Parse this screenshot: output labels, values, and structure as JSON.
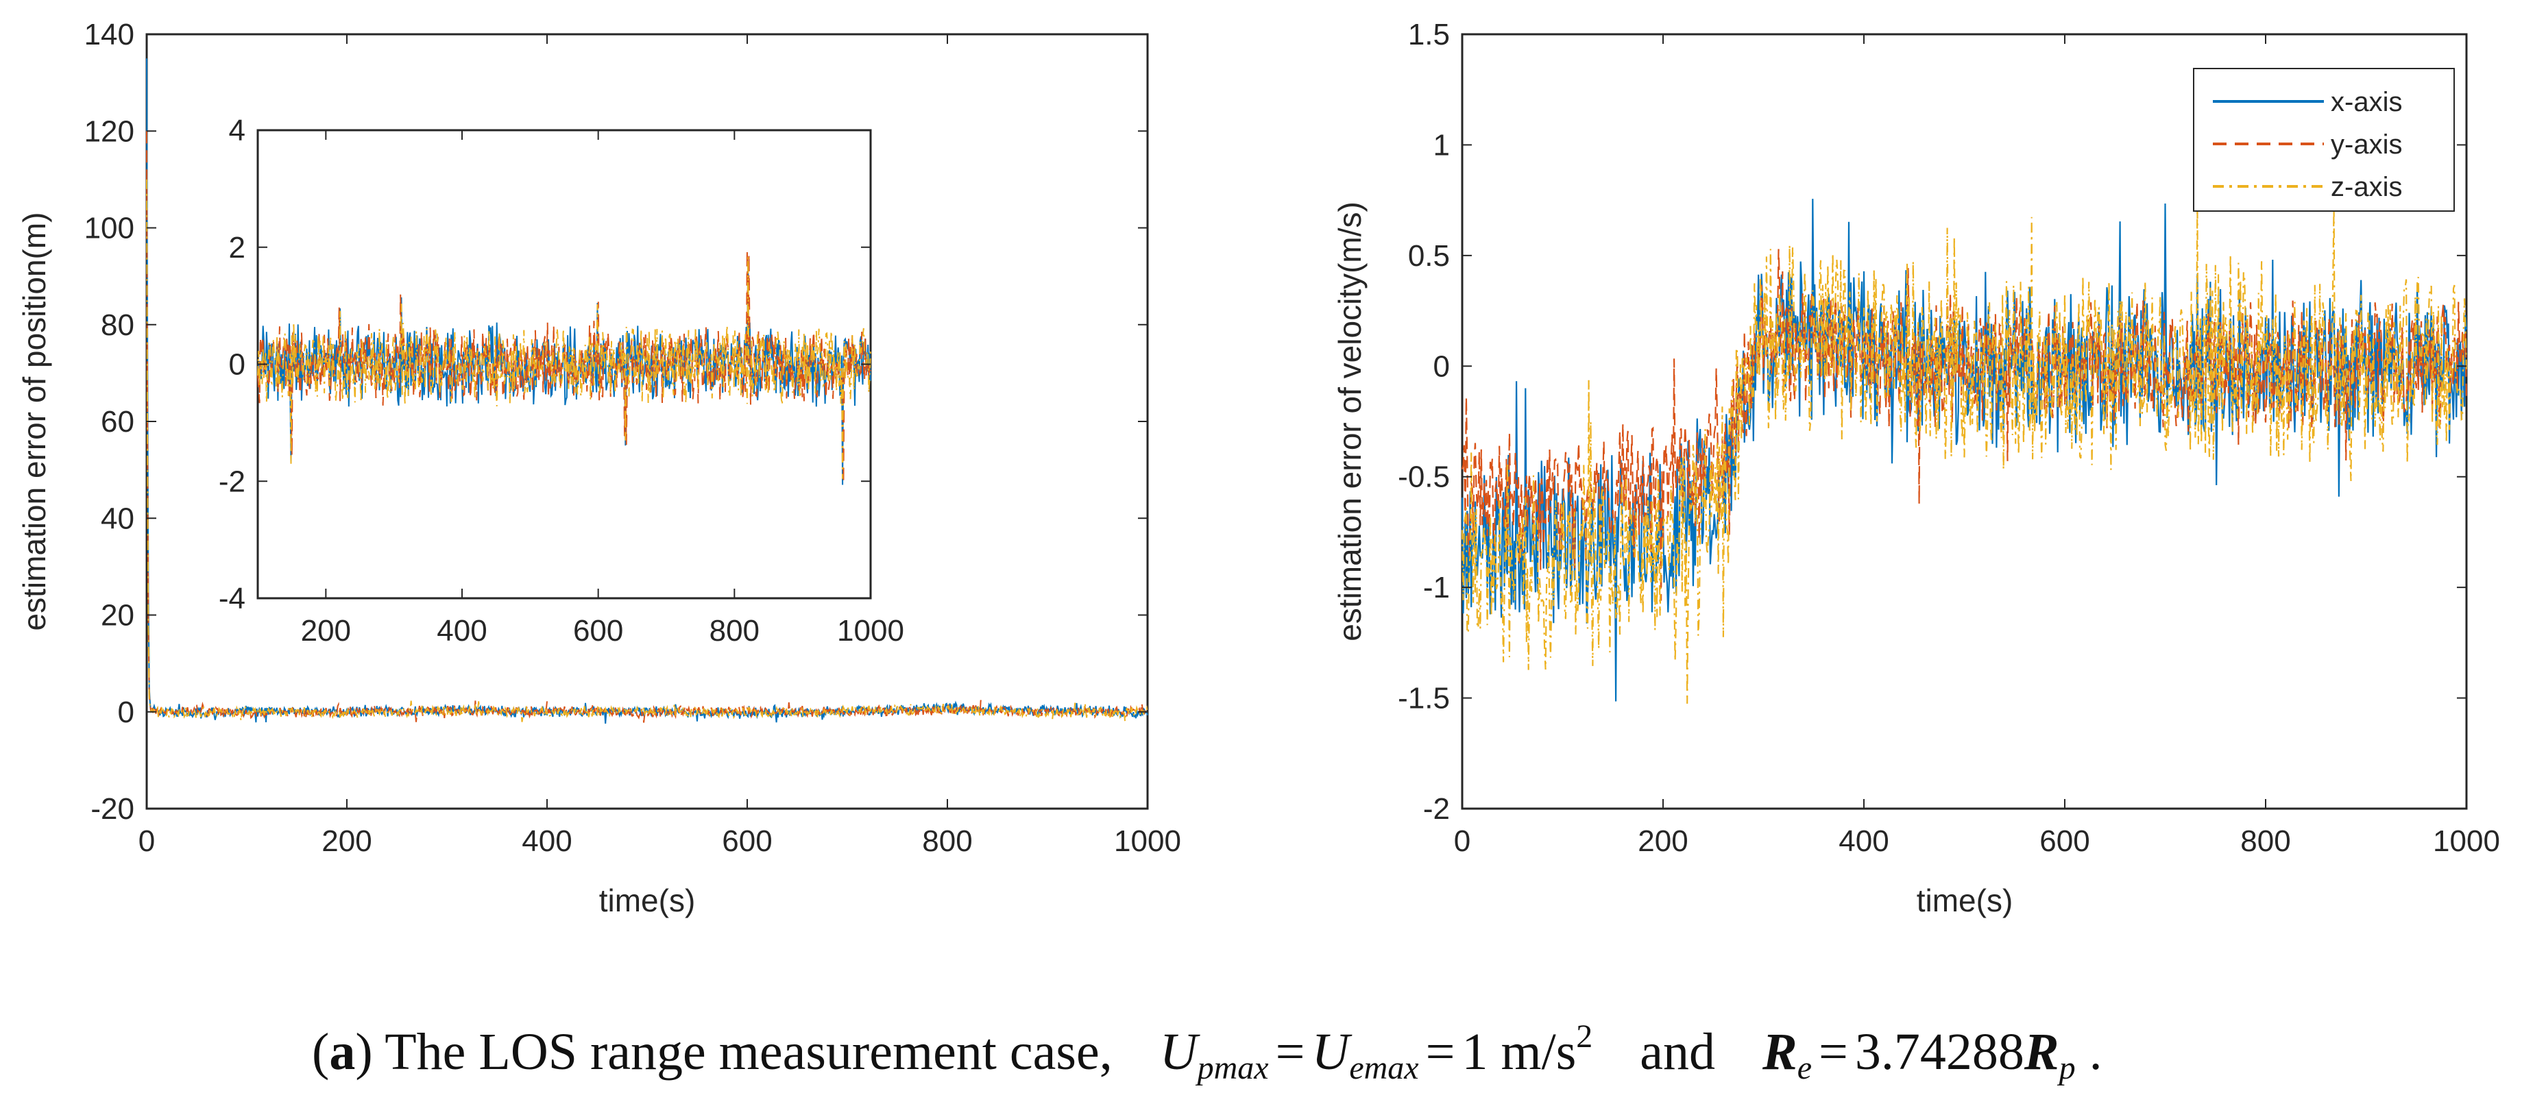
{
  "chart_data": [
    {
      "type": "line",
      "title": "",
      "xlabel": "time(s)",
      "ylabel": "estimation error of position(m)",
      "xlim": [
        0,
        1000
      ],
      "ylim": [
        -20,
        140
      ],
      "xticks": [
        "0",
        "200",
        "400",
        "600",
        "800",
        "1000"
      ],
      "yticks": [
        "-20",
        "0",
        "20",
        "40",
        "60",
        "80",
        "100",
        "120",
        "140"
      ],
      "grid": false,
      "legend": null,
      "series": [
        {
          "color": "#0072BD",
          "style": "solid",
          "x": [
            0,
            1,
            2,
            3,
            5,
            10,
            50,
            100,
            200,
            300,
            400,
            500,
            600,
            700,
            800,
            900,
            1000
          ],
          "y": [
            135,
            60,
            8,
            2,
            0.5,
            0,
            -0.3,
            0.2,
            -0.1,
            0.4,
            0,
            0.2,
            -0.3,
            0.1,
            0.9,
            0.2,
            0
          ]
        },
        {
          "color": "#D95319",
          "style": "dashed",
          "x": [
            0,
            1,
            2,
            3,
            5,
            10,
            50,
            100,
            200,
            300,
            400,
            500,
            600,
            700,
            800,
            900,
            1000
          ],
          "y": [
            120,
            45,
            6,
            1.5,
            0.4,
            0,
            0.2,
            -0.2,
            0.1,
            0.3,
            0.1,
            -0.1,
            0.2,
            0,
            0.5,
            0.1,
            0
          ]
        },
        {
          "color": "#EDB120",
          "style": "dashdot",
          "x": [
            0,
            1,
            2,
            3,
            5,
            10,
            50,
            100,
            200,
            300,
            400,
            500,
            600,
            700,
            800,
            900,
            1000
          ],
          "y": [
            110,
            40,
            5,
            1,
            0.3,
            0,
            -0.2,
            0.1,
            -0.3,
            0.2,
            -0.1,
            0.3,
            -0.2,
            0.1,
            0.6,
            -0.4,
            0
          ]
        }
      ],
      "inset": {
        "xlim": [
          100,
          1000
        ],
        "ylim": [
          -4,
          4
        ],
        "xticks": [
          "200",
          "400",
          "600",
          "800",
          "1000"
        ],
        "yticks": [
          "-4",
          "-2",
          "0",
          "2",
          "4"
        ],
        "noise_amplitude": 0.5,
        "spikes": [
          {
            "x": 220,
            "y": 1.0
          },
          {
            "x": 310,
            "y": 1.2
          },
          {
            "x": 600,
            "y": 1.2
          },
          {
            "x": 820,
            "y": 2.0
          },
          {
            "x": 960,
            "y": -2.3
          },
          {
            "x": 640,
            "y": -1.4
          },
          {
            "x": 150,
            "y": -1.8
          }
        ]
      }
    },
    {
      "type": "line",
      "title": "",
      "xlabel": "time(s)",
      "ylabel": "estimation error of velocity(m/s)",
      "xlim": [
        0,
        1000
      ],
      "ylim": [
        -2,
        1.5
      ],
      "xticks": [
        "0",
        "200",
        "400",
        "600",
        "800",
        "1000"
      ],
      "yticks": [
        "-2",
        "-1.5",
        "-1",
        "-0.5",
        "0",
        "0.5",
        "1",
        "1.5"
      ],
      "grid": false,
      "legend": {
        "placement": "top-right",
        "entries": [
          "x-axis",
          "y-axis",
          "z-axis"
        ]
      },
      "series": [
        {
          "name": "x-axis",
          "color": "#0072BD",
          "style": "solid",
          "x": [
            0,
            100,
            200,
            260,
            300,
            400,
            500,
            600,
            700,
            800,
            900,
            1000
          ],
          "y": [
            -0.8,
            -0.8,
            -0.75,
            -0.5,
            0.15,
            0.05,
            0,
            0,
            0,
            0,
            0,
            0
          ],
          "noise_amplitude": 0.28
        },
        {
          "name": "y-axis",
          "color": "#D95319",
          "style": "dashed",
          "x": [
            0,
            100,
            200,
            260,
            300,
            400,
            500,
            600,
            700,
            800,
            900,
            1000
          ],
          "y": [
            -0.6,
            -0.6,
            -0.55,
            -0.45,
            0.15,
            0.05,
            0,
            0,
            0,
            0,
            0,
            0
          ],
          "noise_amplitude": 0.22
        },
        {
          "name": "z-axis",
          "color": "#EDB120",
          "style": "dashdot",
          "x": [
            0,
            100,
            200,
            260,
            300,
            400,
            500,
            600,
            700,
            800,
            900,
            1000
          ],
          "y": [
            -0.9,
            -0.9,
            -0.85,
            -0.55,
            0.15,
            0.05,
            0,
            0,
            0,
            0,
            0,
            0
          ],
          "noise_amplitude": 0.33
        }
      ]
    }
  ],
  "caption": {
    "label": "a",
    "text": "The LOS range measurement case,",
    "eq1_lhs": "U",
    "eq1_lhs_sub": "pmax",
    "eq1_mid": "U",
    "eq1_mid_sub": "emax",
    "eq1_value": "1 m/s",
    "eq1_power": "2",
    "conj": "and",
    "eq2_lhs": "R",
    "eq2_lhs_sub": "e",
    "eq2_value": "3.74288",
    "eq2_rhs": "R",
    "eq2_rhs_sub": "p",
    "period": "."
  }
}
